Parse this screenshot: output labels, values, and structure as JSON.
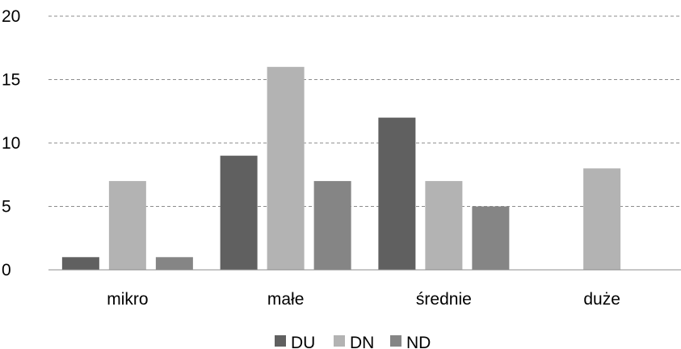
{
  "chart_data": {
    "type": "bar",
    "title": "",
    "xlabel": "",
    "ylabel": "",
    "categories": [
      "mikro",
      "małe",
      "średnie",
      "duże"
    ],
    "series": [
      {
        "name": "DU",
        "values": [
          1,
          9,
          12,
          0
        ],
        "color": "#606060"
      },
      {
        "name": "DN",
        "values": [
          7,
          16,
          7,
          8
        ],
        "color": "#b3b3b3"
      },
      {
        "name": "ND",
        "values": [
          1,
          7,
          5,
          0
        ],
        "color": "#858585"
      }
    ],
    "ylim": [
      0,
      20
    ],
    "yticks": [
      0,
      5,
      10,
      15,
      20
    ],
    "grid": true,
    "legend_position": "bottom"
  }
}
